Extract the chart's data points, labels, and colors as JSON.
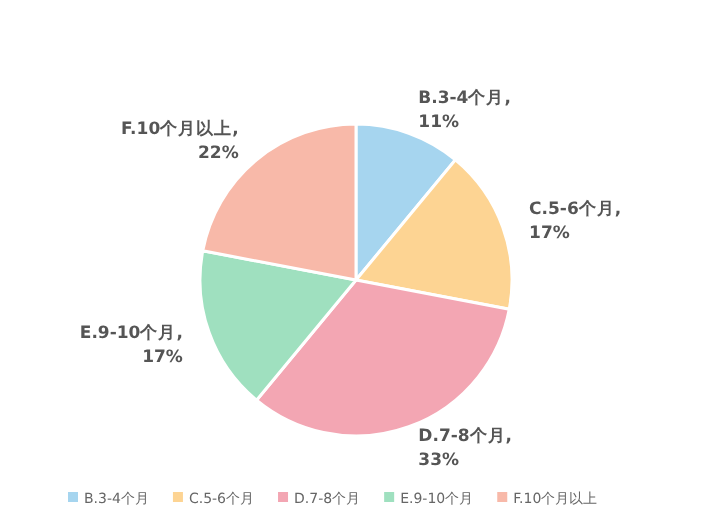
{
  "chart_data": {
    "type": "pie",
    "categories": [
      "B.3-4个月",
      "C.5-6个月",
      "D.7-8个月",
      "E.9-10个月",
      "F.10个月以上"
    ],
    "values": [
      11,
      17,
      33,
      17,
      22
    ],
    "colors": [
      "#a6d5ef",
      "#fdd493",
      "#f3a6b3",
      "#9fe0bf",
      "#f8b9a9"
    ],
    "value_labels": [
      "B.3-4个月,\n11%",
      "C.5-6个月,\n17%",
      "D.7-8个月,\n33%",
      "E.9-10个月,\n17%",
      "F.10个月以上,\n22%"
    ],
    "legend": "bottom"
  }
}
